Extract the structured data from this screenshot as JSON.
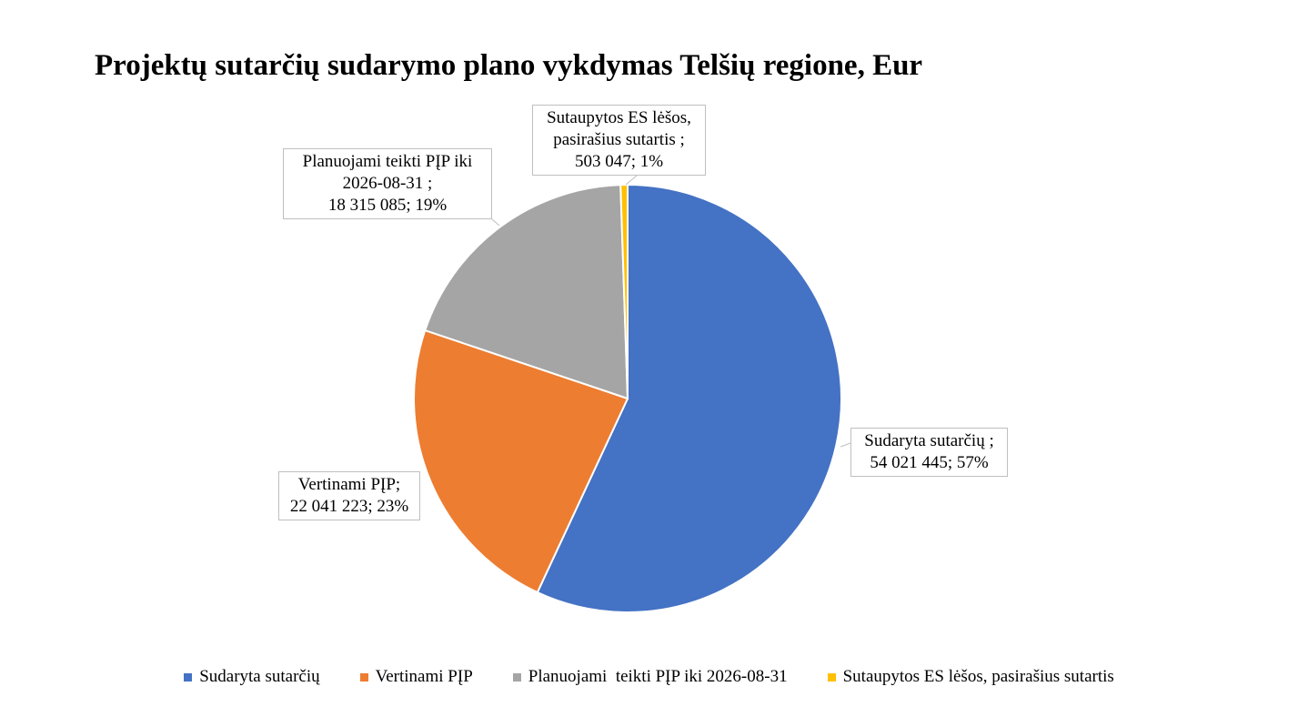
{
  "chart_data": {
    "type": "pie",
    "title": "Projektų sutarčių sudarymo plano vykdymas Telšių regione, Eur",
    "categories": [
      "Sudaryta sutarčių",
      "Vertinami PĮP",
      "Planuojami  teikti PĮP iki 2026-08-31",
      "Sutaupytos ES lėšos, pasirašius sutartis"
    ],
    "values": [
      54021445,
      22041223,
      18315085,
      503047
    ],
    "value_labels": [
      "Sudaryta sutarčių ;\n54 021 445; 57%",
      "Vertinami PĮP;\n22 041 223; 23%",
      "Planuojami  teikti PĮP iki\n2026-08-31 ;\n18 315 085; 19%",
      "Sutaupytos ES lėšos,\npasirašius sutartis ;\n503 047; 1%"
    ],
    "colors": [
      "#4472c4",
      "#ed7d31",
      "#a5a5a5",
      "#ffc000"
    ],
    "legend": "bottom"
  }
}
